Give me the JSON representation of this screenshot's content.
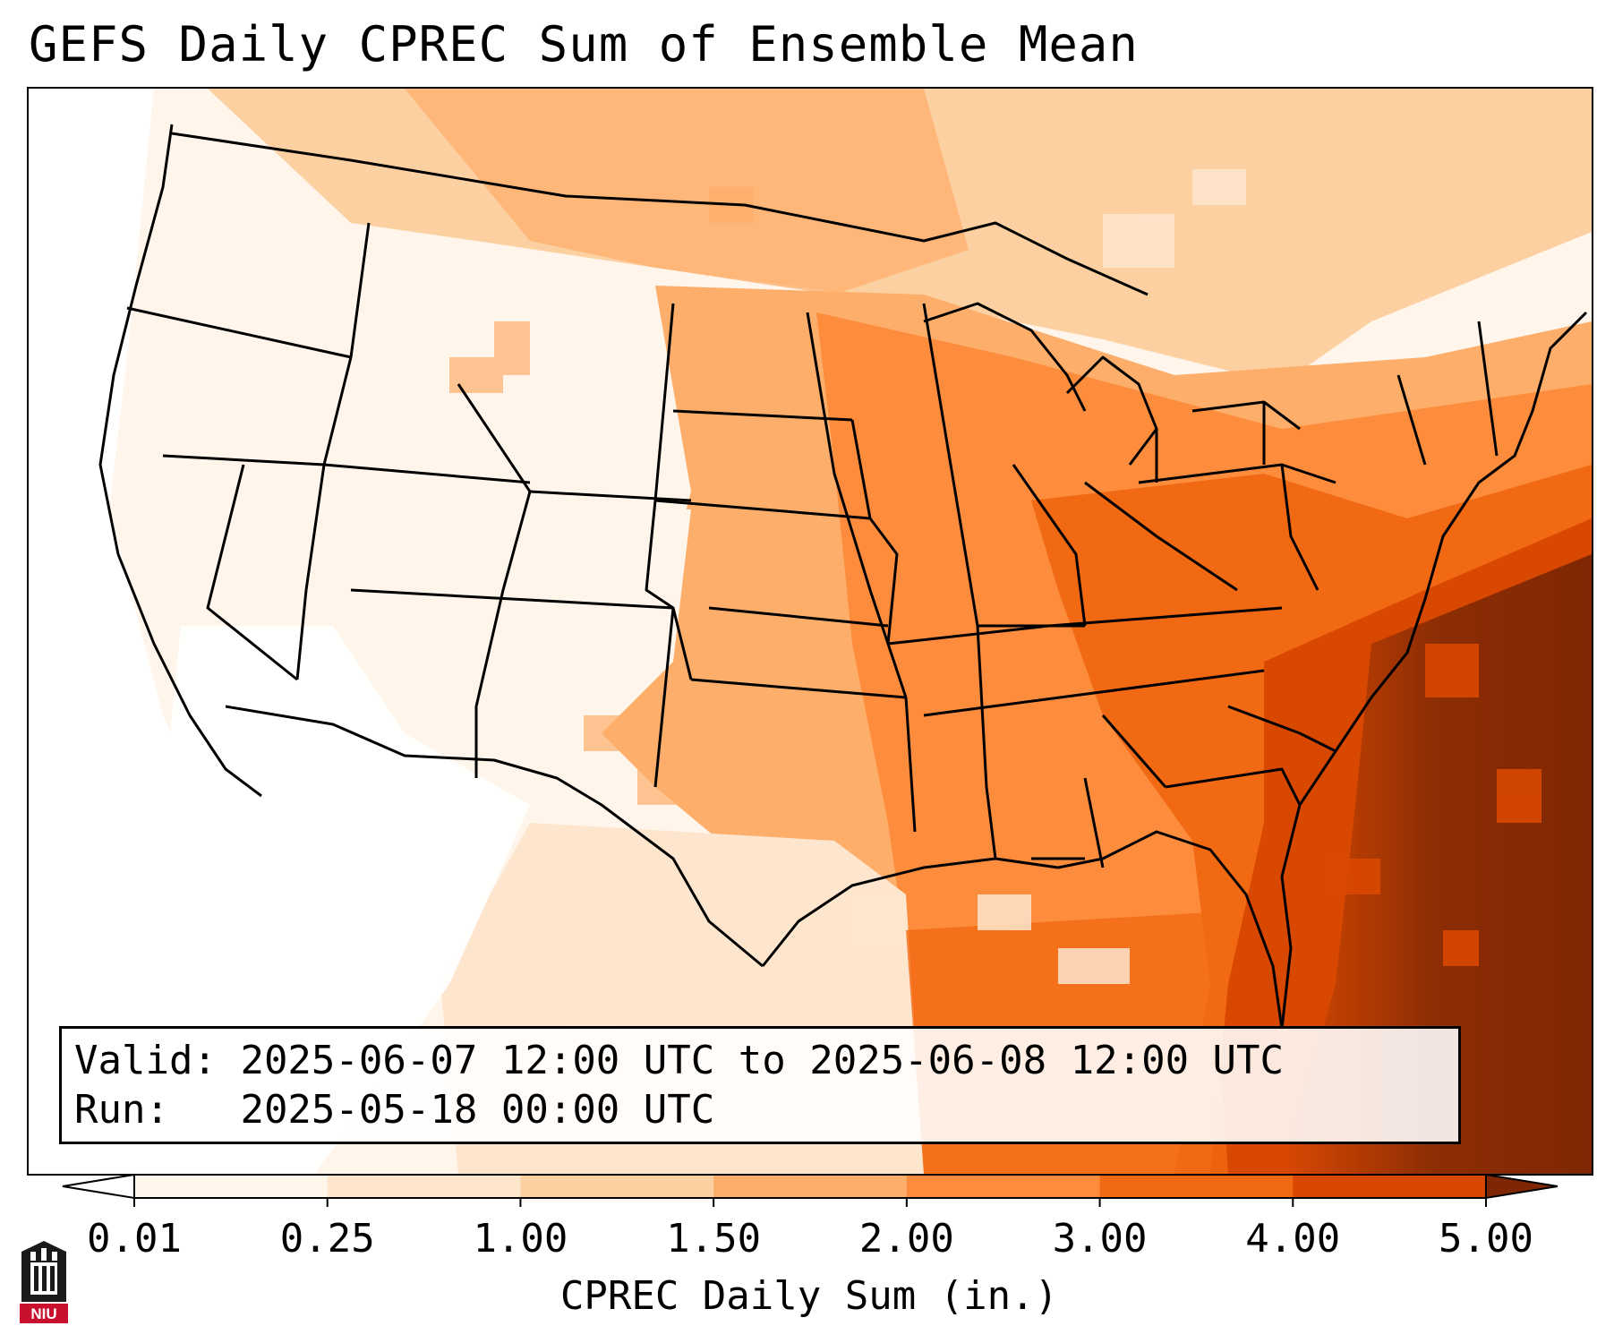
{
  "title": "GEFS Daily CPREC Sum of Ensemble Mean",
  "info": {
    "valid_label": "Valid:",
    "valid_value": "2025-06-07 12:00 UTC to 2025-06-08 12:00 UTC",
    "run_label": "Run:",
    "run_value": "2025-05-18 00:00 UTC"
  },
  "colorbar": {
    "label": "CPREC Daily Sum (in.)",
    "ticks": [
      "0.01",
      "0.25",
      "1.00",
      "1.50",
      "2.00",
      "3.00",
      "4.00",
      "5.00"
    ],
    "colors": [
      "#fff5eb",
      "#fee6ce",
      "#fdd0a2",
      "#fdae6b",
      "#fd8d3c",
      "#f16913",
      "#d94801",
      "#8c2d04"
    ],
    "under_color": "#ffffff",
    "over_color": "#7f2704"
  },
  "logo": {
    "text": "NIU",
    "color": "#c8102e"
  }
}
